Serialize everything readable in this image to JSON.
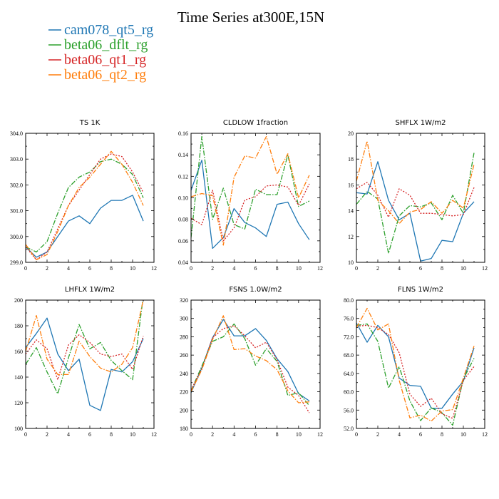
{
  "figure": {
    "title": "Time Series at300E,15N"
  },
  "legend": [
    {
      "name": "cam078_qt5_rg",
      "color": "#1f77b4",
      "dash": "solid"
    },
    {
      "name": "beta06_dflt_rg",
      "color": "#2ca02c",
      "dash": "dashdot"
    },
    {
      "name": "beta06_qt1_rg",
      "color": "#d62728",
      "dash": "dot"
    },
    {
      "name": "beta06_qt2_rg",
      "color": "#ff7f0e",
      "dash": "dashdot"
    }
  ],
  "chart_data": [
    {
      "type": "line",
      "title": "TS   1K",
      "x": [
        0,
        1,
        2,
        3,
        4,
        5,
        6,
        7,
        8,
        9,
        10,
        11
      ],
      "xlim": [
        0,
        12
      ],
      "xticks": [
        "0",
        "2",
        "4",
        "6",
        "8",
        "10",
        "12"
      ],
      "ylim": [
        299.0,
        304.0
      ],
      "yticks": [
        "299.0",
        "300.0",
        "301.0",
        "302.0",
        "303.0",
        "304.0"
      ],
      "series": [
        {
          "name": "cam078_qt5_rg",
          "values": [
            299.6,
            299.2,
            299.4,
            300.0,
            300.6,
            300.8,
            300.5,
            301.1,
            301.4,
            301.4,
            301.6,
            300.6
          ]
        },
        {
          "name": "beta06_dflt_rg",
          "values": [
            299.6,
            299.4,
            299.8,
            300.9,
            301.9,
            302.3,
            302.5,
            302.9,
            303.0,
            302.8,
            302.4,
            301.5
          ]
        },
        {
          "name": "beta06_qt1_rg",
          "values": [
            299.6,
            299.1,
            299.4,
            300.3,
            301.2,
            301.8,
            302.4,
            303.0,
            303.2,
            303.1,
            302.5,
            301.7
          ]
        },
        {
          "name": "beta06_qt2_rg",
          "values": [
            299.7,
            299.1,
            299.3,
            300.2,
            301.2,
            301.9,
            302.3,
            302.8,
            303.3,
            302.8,
            302.1,
            301.2
          ]
        }
      ]
    },
    {
      "type": "line",
      "title": "CLDLOW   1fraction",
      "x": [
        0,
        1,
        2,
        3,
        4,
        5,
        6,
        7,
        8,
        9,
        10,
        11
      ],
      "xlim": [
        0,
        12
      ],
      "xticks": [
        "0",
        "2",
        "4",
        "6",
        "8",
        "10",
        "12"
      ],
      "ylim": [
        0.04,
        0.16
      ],
      "yticks": [
        "0.04",
        "0.06",
        "0.08",
        "0.10",
        "0.12",
        "0.14",
        "0.16"
      ],
      "series": [
        {
          "name": "cam078_qt5_rg",
          "values": [
            0.107,
            0.135,
            0.053,
            0.063,
            0.09,
            0.077,
            0.072,
            0.064,
            0.094,
            0.096,
            0.076,
            0.061
          ]
        },
        {
          "name": "beta06_dflt_rg",
          "values": [
            0.063,
            0.157,
            0.08,
            0.109,
            0.075,
            0.071,
            0.108,
            0.103,
            0.103,
            0.14,
            0.092,
            0.097
          ]
        },
        {
          "name": "beta06_qt1_rg",
          "values": [
            0.081,
            0.075,
            0.107,
            0.06,
            0.072,
            0.098,
            0.101,
            0.111,
            0.112,
            0.11,
            0.093,
            0.113
          ]
        },
        {
          "name": "beta06_qt2_rg",
          "values": [
            0.101,
            0.104,
            0.102,
            0.056,
            0.119,
            0.139,
            0.137,
            0.157,
            0.122,
            0.141,
            0.1,
            0.121
          ]
        }
      ]
    },
    {
      "type": "line",
      "title": "SHFLX   1W/m2",
      "x": [
        0,
        1,
        2,
        3,
        4,
        5,
        6,
        7,
        8,
        9,
        10,
        11
      ],
      "xlim": [
        0,
        12
      ],
      "xticks": [
        "0",
        "2",
        "4",
        "6",
        "8",
        "10",
        "12"
      ],
      "ylim": [
        10,
        20
      ],
      "yticks": [
        "10",
        "12",
        "14",
        "16",
        "18",
        "20"
      ],
      "series": [
        {
          "name": "cam078_qt5_rg",
          "values": [
            15.4,
            15.3,
            17.8,
            14.8,
            13.3,
            13.8,
            10.1,
            10.3,
            11.7,
            11.6,
            13.8,
            14.7
          ]
        },
        {
          "name": "beta06_dflt_rg",
          "values": [
            14.5,
            15.5,
            14.9,
            10.7,
            13.6,
            14.4,
            14.3,
            14.6,
            13.3,
            15.2,
            13.8,
            18.5
          ]
        },
        {
          "name": "beta06_qt1_rg",
          "values": [
            15.7,
            16.2,
            15.2,
            13.5,
            15.7,
            15.2,
            13.8,
            13.8,
            13.7,
            13.6,
            13.7,
            15.8
          ]
        },
        {
          "name": "beta06_qt2_rg",
          "values": [
            16.3,
            19.4,
            14.8,
            14.0,
            13.0,
            13.9,
            14.1,
            14.7,
            13.8,
            14.8,
            14.2,
            17.6
          ]
        }
      ]
    },
    {
      "type": "line",
      "title": "LHFLX   1W/m2",
      "x": [
        0,
        1,
        2,
        3,
        4,
        5,
        6,
        7,
        8,
        9,
        10,
        11
      ],
      "xlim": [
        0,
        12
      ],
      "xticks": [
        "0",
        "2",
        "4",
        "6",
        "8",
        "10",
        "12"
      ],
      "ylim": [
        100,
        200
      ],
      "yticks": [
        "100",
        "120",
        "140",
        "160",
        "180",
        "200"
      ],
      "series": [
        {
          "name": "cam078_qt5_rg",
          "values": [
            163,
            174,
            186,
            158,
            145,
            154,
            118,
            114,
            146,
            144,
            152,
            170
          ]
        },
        {
          "name": "beta06_dflt_rg",
          "values": [
            150,
            163,
            144,
            127,
            155,
            181,
            162,
            167,
            153,
            145,
            138,
            203
          ]
        },
        {
          "name": "beta06_qt1_rg",
          "values": [
            158,
            169,
            162,
            138,
            165,
            173,
            167,
            158,
            156,
            158,
            146,
            172
          ]
        },
        {
          "name": "beta06_qt2_rg",
          "values": [
            160,
            188,
            154,
            142,
            142,
            168,
            156,
            147,
            144,
            150,
            163,
            200
          ]
        }
      ]
    },
    {
      "type": "line",
      "title": "FSNS   1.0W/m2",
      "x": [
        0,
        1,
        2,
        3,
        4,
        5,
        6,
        7,
        8,
        9,
        10,
        11
      ],
      "xlim": [
        0,
        12
      ],
      "xticks": [
        "0",
        "2",
        "4",
        "6",
        "8",
        "10",
        "12"
      ],
      "ylim": [
        180,
        320
      ],
      "yticks": [
        "180",
        "200",
        "220",
        "240",
        "260",
        "280",
        "300",
        "320"
      ],
      "series": [
        {
          "name": "cam078_qt5_rg",
          "values": [
            219,
            246,
            279,
            299,
            281,
            281,
            289,
            276,
            256,
            242,
            218,
            210
          ]
        },
        {
          "name": "beta06_dflt_rg",
          "values": [
            221,
            248,
            275,
            280,
            294,
            278,
            249,
            267,
            253,
            216,
            219,
            205
          ]
        },
        {
          "name": "beta06_qt1_rg",
          "values": [
            222,
            245,
            279,
            289,
            292,
            281,
            268,
            274,
            255,
            225,
            216,
            197
          ]
        },
        {
          "name": "beta06_qt2_rg",
          "values": [
            220,
            244,
            277,
            303,
            266,
            267,
            259,
            254,
            244,
            221,
            208,
            209
          ]
        }
      ]
    },
    {
      "type": "line",
      "title": "FLNS   1W/m2",
      "x": [
        0,
        1,
        2,
        3,
        4,
        5,
        6,
        7,
        8,
        9,
        10,
        11
      ],
      "xlim": [
        0,
        12
      ],
      "xticks": [
        "0",
        "2",
        "4",
        "6",
        "8",
        "10",
        "12"
      ],
      "ylim": [
        52.0,
        80.0
      ],
      "yticks": [
        "52.0",
        "56.0",
        "60.0",
        "64.0",
        "68.0",
        "72.0",
        "76.0",
        "80.0"
      ],
      "series": [
        {
          "name": "cam078_qt5_rg",
          "values": [
            75.0,
            70.8,
            74.5,
            72.0,
            63.0,
            61.4,
            61.2,
            56.4,
            56.4,
            59.5,
            62.3,
            69.6
          ]
        },
        {
          "name": "beta06_dflt_rg",
          "values": [
            74.5,
            74.8,
            71.0,
            60.8,
            65.5,
            58.0,
            53.7,
            56.5,
            55.4,
            52.7,
            62.8,
            67.3
          ]
        },
        {
          "name": "beta06_qt1_rg",
          "values": [
            74.3,
            74.5,
            74.0,
            72.5,
            68.5,
            59.5,
            56.8,
            58.6,
            55.2,
            54.2,
            62.5,
            65.5
          ]
        },
        {
          "name": "beta06_qt2_rg",
          "values": [
            74.0,
            78.2,
            73.5,
            74.8,
            62.5,
            54.3,
            54.9,
            53.6,
            55.8,
            56.1,
            63.0,
            70.0
          ]
        }
      ]
    }
  ]
}
